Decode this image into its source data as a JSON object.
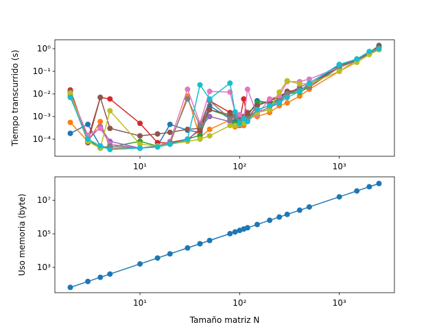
{
  "chart_data": [
    {
      "type": "line",
      "ylabel": "Tiempo transcurrido (s)",
      "xscale": "log",
      "yscale": "log",
      "x": [
        2,
        3,
        4,
        5,
        10,
        15,
        20,
        30,
        40,
        50,
        80,
        90,
        100,
        110,
        120,
        150,
        200,
        250,
        300,
        400,
        500,
        1000,
        1500,
        2000,
        2500
      ],
      "xlim": [
        1.4,
        3573
      ],
      "ylim": [
        1.75e-05,
        2.48
      ],
      "xticks": [
        {
          "value": 10,
          "label": "10¹"
        },
        {
          "value": 100,
          "label": "10²"
        },
        {
          "value": 1000,
          "label": "10³"
        }
      ],
      "yticks": [
        {
          "value": 0.0001,
          "label": "10⁻⁴"
        },
        {
          "value": 0.001,
          "label": "10⁻³"
        },
        {
          "value": 0.01,
          "label": "10⁻²"
        },
        {
          "value": 0.1,
          "label": "10⁻¹"
        },
        {
          "value": 1,
          "label": "10⁰"
        }
      ],
      "series": [
        {
          "color": "#1f77b4",
          "values": [
            0.00018,
            0.00045,
            5e-05,
            4e-05,
            4e-05,
            5e-05,
            0.00045,
            0.00025,
            0.0002,
            0.003,
            0.0008,
            0.0006,
            0.0005,
            0.0007,
            0.001,
            0.005,
            0.004,
            0.006,
            0.012,
            0.015,
            0.025,
            0.18,
            0.35,
            0.7,
            1.2
          ]
        },
        {
          "color": "#ff7f0e",
          "values": [
            0.00055,
            8e-05,
            0.0006,
            4e-05,
            4e-05,
            5e-05,
            6e-05,
            0.008,
            0.00012,
            0.00027,
            0.0007,
            0.00035,
            0.0006,
            0.0004,
            0.0009,
            0.001,
            0.0015,
            0.003,
            0.004,
            0.008,
            0.016,
            0.1,
            0.3,
            0.6,
            1.1
          ]
        },
        {
          "color": "#2ca02c",
          "values": [
            0.01,
            0.0001,
            4e-05,
            4.5e-05,
            8e-05,
            5e-05,
            7e-05,
            0.0001,
            0.00015,
            0.002,
            0.001,
            0.0005,
            0.0006,
            0.0005,
            0.0012,
            0.004,
            0.004,
            0.005,
            0.01,
            0.012,
            0.02,
            0.15,
            0.3,
            0.65,
            1.4
          ]
        },
        {
          "color": "#d62728",
          "values": [
            0.015,
            0.0001,
            0.007,
            0.006,
            0.0005,
            7e-05,
            7e-05,
            0.0001,
            0.00025,
            0.005,
            0.0015,
            0.0012,
            0.0006,
            0.006,
            0.0008,
            0.003,
            0.005,
            0.007,
            0.013,
            0.015,
            0.025,
            0.15,
            0.3,
            0.6,
            1.1
          ]
        },
        {
          "color": "#9467bd",
          "values": [
            0.012,
            9e-05,
            0.00035,
            8e-05,
            4e-05,
            5e-05,
            6e-05,
            9e-05,
            0.0003,
            0.001,
            0.0006,
            0.0012,
            0.0004,
            0.0005,
            0.0007,
            0.0015,
            0.0025,
            0.004,
            0.01,
            0.02,
            0.03,
            0.2,
            0.3,
            0.7,
            1.2
          ]
        },
        {
          "color": "#8c564b",
          "values": [
            0.013,
            7e-05,
            0.007,
            0.0003,
            0.00014,
            0.00017,
            0.0002,
            0.00027,
            0.0003,
            0.002,
            0.0012,
            0.0013,
            0.001,
            0.001,
            0.0015,
            0.003,
            0.005,
            0.008,
            0.012,
            0.016,
            0.02,
            0.18,
            0.3,
            0.7,
            1.3
          ]
        },
        {
          "color": "#e377c2",
          "values": [
            0.01,
            0.00015,
            0.0003,
            6e-05,
            4e-05,
            5e-05,
            8e-05,
            0.016,
            0.0005,
            0.013,
            0.012,
            0.0015,
            0.0012,
            0.0007,
            0.016,
            0.0012,
            0.006,
            0.008,
            0.035,
            0.035,
            0.045,
            0.15,
            0.3,
            0.6,
            1.0
          ]
        },
        {
          "color": "#7f7f7f",
          "values": [
            0.008,
            8e-05,
            4e-05,
            5e-05,
            4e-05,
            5e-05,
            7e-05,
            0.006,
            0.0004,
            0.005,
            0.0008,
            0.001,
            0.0006,
            0.0007,
            0.0008,
            0.002,
            0.003,
            0.005,
            0.01,
            0.015,
            0.02,
            0.15,
            0.3,
            0.6,
            1.0
          ]
        },
        {
          "color": "#bcbd22",
          "values": [
            0.011,
            8e-05,
            4e-05,
            0.0018,
            6e-05,
            5e-05,
            6e-05,
            8e-05,
            0.0001,
            0.00014,
            0.0004,
            0.0004,
            0.00045,
            0.0005,
            0.0006,
            0.0015,
            0.002,
            0.012,
            0.038,
            0.028,
            0.028,
            0.1,
            0.25,
            0.55,
            0.9
          ]
        },
        {
          "color": "#17becf",
          "values": [
            0.007,
            0.0001,
            5e-05,
            3.5e-05,
            4e-05,
            4.5e-05,
            6e-05,
            0.0001,
            0.025,
            0.006,
            0.03,
            0.0016,
            0.0005,
            0.0008,
            0.0006,
            0.002,
            0.003,
            0.004,
            0.007,
            0.013,
            0.03,
            0.2,
            0.35,
            0.75,
            1.0
          ]
        }
      ]
    },
    {
      "type": "line",
      "ylabel": "Uso memoria (byte)",
      "xlabel": "Tamaño matriz N",
      "xscale": "log",
      "yscale": "log",
      "x": [
        2,
        3,
        4,
        5,
        10,
        15,
        20,
        30,
        40,
        50,
        80,
        90,
        100,
        110,
        120,
        150,
        200,
        250,
        300,
        400,
        500,
        1000,
        1500,
        2000,
        2500
      ],
      "xlim": [
        1.4,
        3573
      ],
      "ylim": [
        31,
        250000000.0
      ],
      "xticks": [
        {
          "value": 10,
          "label": "10¹"
        },
        {
          "value": 100,
          "label": "10²"
        },
        {
          "value": 1000,
          "label": "10³"
        }
      ],
      "yticks": [
        {
          "value": 1000,
          "label": "10³"
        },
        {
          "value": 100000,
          "label": "10⁵"
        },
        {
          "value": 10000000,
          "label": "10⁷"
        }
      ],
      "series": [
        {
          "color": "#1f77b4",
          "values": [
            64,
            144,
            256,
            400,
            1600,
            3600,
            6400,
            14400,
            25600,
            40000,
            102400,
            129600,
            160000,
            193600,
            230400,
            360000,
            640000,
            1000000,
            1440000,
            2560000,
            4000000,
            16000000,
            36000000,
            64000000,
            100000000
          ]
        }
      ]
    }
  ]
}
